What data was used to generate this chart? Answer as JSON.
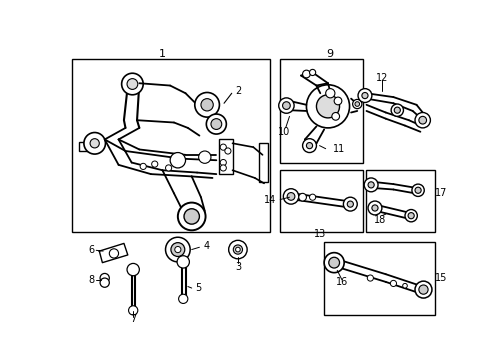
{
  "bg_color": "#ffffff",
  "fig_w": 4.89,
  "fig_h": 3.6,
  "dpi": 100,
  "lc": "#000000",
  "gray": "#999999",
  "lgray": "#bbbbbb"
}
